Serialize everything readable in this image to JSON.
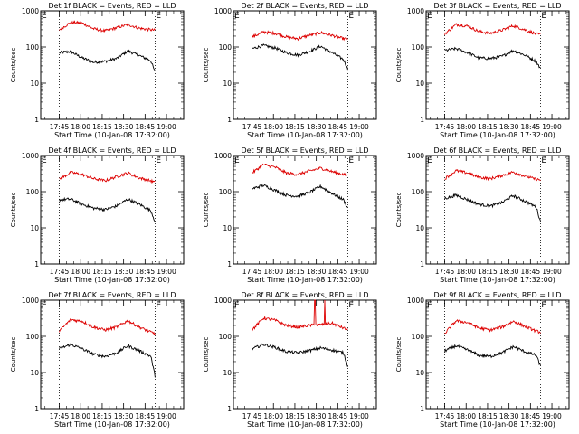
{
  "figure": {
    "xlabel": "Start Time (10-Jan-08 17:32:00)",
    "ylabel": "Counts/sec",
    "marker": "E"
  },
  "colors": {
    "events": "#000000",
    "lld": "#dd0000"
  },
  "chart_data": [
    {
      "type": "line",
      "title": "Det 1f BLACK = Events, RED = LLD",
      "y_scale": "log",
      "ylim": [
        1,
        1000
      ],
      "x_ticks": [
        "17:45",
        "18:00",
        "18:15",
        "18:30",
        "18:45",
        "19:00"
      ],
      "y_ticks": [
        "1",
        "10",
        "100",
        "1000"
      ],
      "grid": false,
      "start_marker": "17:32",
      "end_marker": "18:52",
      "dotted_lines": [
        "17:45",
        "18:52"
      ],
      "x": [
        "17:45",
        "17:53",
        "18:01",
        "18:09",
        "18:17",
        "18:25",
        "18:33",
        "18:41",
        "18:49",
        "18:52"
      ],
      "series": [
        {
          "color": "black",
          "values": [
            70,
            75,
            50,
            38,
            40,
            48,
            78,
            58,
            42,
            20
          ]
        },
        {
          "color": "red",
          "values": [
            300,
            480,
            460,
            320,
            280,
            340,
            420,
            330,
            300,
            290
          ]
        }
      ]
    },
    {
      "type": "line",
      "title": "Det 2f BLACK = Events, RED = LLD",
      "y_scale": "log",
      "ylim": [
        1,
        1000
      ],
      "x_ticks": [
        "17:45",
        "18:00",
        "18:15",
        "18:30",
        "18:45",
        "19:00"
      ],
      "y_ticks": [
        "1",
        "10",
        "100",
        "1000"
      ],
      "grid": false,
      "start_marker": "17:32",
      "end_marker": "18:52",
      "dotted_lines": [
        "17:45",
        "18:52"
      ],
      "x": [
        "17:45",
        "17:53",
        "18:01",
        "18:09",
        "18:17",
        "18:25",
        "18:33",
        "18:41",
        "18:49",
        "18:52"
      ],
      "series": [
        {
          "color": "black",
          "values": [
            90,
            110,
            95,
            70,
            60,
            75,
            105,
            70,
            45,
            25
          ]
        },
        {
          "color": "red",
          "values": [
            190,
            260,
            240,
            190,
            170,
            210,
            250,
            210,
            170,
            170
          ]
        }
      ]
    },
    {
      "type": "line",
      "title": "Det 3f BLACK = Events, RED = LLD",
      "y_scale": "log",
      "ylim": [
        1,
        1000
      ],
      "x_ticks": [
        "17:45",
        "18:00",
        "18:15",
        "18:30",
        "18:45",
        "19:00"
      ],
      "y_ticks": [
        "1",
        "10",
        "100",
        "1000"
      ],
      "grid": false,
      "start_marker": "17:32",
      "end_marker": "18:52",
      "dotted_lines": [
        "17:45",
        "18:52"
      ],
      "x": [
        "17:45",
        "17:53",
        "18:01",
        "18:09",
        "18:17",
        "18:25",
        "18:33",
        "18:41",
        "18:49",
        "18:52"
      ],
      "series": [
        {
          "color": "black",
          "values": [
            80,
            90,
            70,
            50,
            48,
            55,
            80,
            60,
            40,
            25
          ]
        },
        {
          "color": "red",
          "values": [
            230,
            420,
            380,
            270,
            240,
            290,
            390,
            300,
            230,
            220
          ]
        }
      ]
    },
    {
      "type": "line",
      "title": "Det 4f BLACK = Events, RED = LLD",
      "y_scale": "log",
      "ylim": [
        1,
        1000
      ],
      "x_ticks": [
        "17:45",
        "18:00",
        "18:15",
        "18:30",
        "18:45",
        "19:00"
      ],
      "y_ticks": [
        "1",
        "10",
        "100",
        "1000"
      ],
      "grid": false,
      "start_marker": "17:32",
      "end_marker": "18:52",
      "dotted_lines": [
        "17:45",
        "18:52"
      ],
      "x": [
        "17:45",
        "17:53",
        "18:01",
        "18:09",
        "18:17",
        "18:25",
        "18:33",
        "18:41",
        "18:49",
        "18:52"
      ],
      "series": [
        {
          "color": "black",
          "values": [
            60,
            62,
            45,
            35,
            32,
            40,
            62,
            45,
            30,
            15
          ]
        },
        {
          "color": "red",
          "values": [
            220,
            340,
            300,
            230,
            200,
            260,
            330,
            240,
            200,
            180
          ]
        }
      ]
    },
    {
      "type": "line",
      "title": "Det 5f BLACK = Events, RED = LLD",
      "y_scale": "log",
      "ylim": [
        1,
        1000
      ],
      "x_ticks": [
        "17:45",
        "18:00",
        "18:15",
        "18:30",
        "18:45",
        "19:00"
      ],
      "y_ticks": [
        "1",
        "10",
        "100",
        "1000"
      ],
      "grid": false,
      "start_marker": "17:32",
      "end_marker": "18:52",
      "dotted_lines": [
        "17:45",
        "18:52"
      ],
      "x": [
        "17:45",
        "17:53",
        "18:01",
        "18:09",
        "18:17",
        "18:25",
        "18:33",
        "18:41",
        "18:49",
        "18:52"
      ],
      "series": [
        {
          "color": "black",
          "values": [
            120,
            150,
            110,
            80,
            75,
            95,
            140,
            90,
            60,
            35
          ]
        },
        {
          "color": "red",
          "values": [
            330,
            560,
            480,
            330,
            300,
            370,
            450,
            360,
            300,
            290
          ]
        }
      ]
    },
    {
      "type": "line",
      "title": "Det 6f BLACK = Events, RED = LLD",
      "y_scale": "log",
      "ylim": [
        1,
        1000
      ],
      "x_ticks": [
        "17:45",
        "18:00",
        "18:15",
        "18:30",
        "18:45",
        "19:00"
      ],
      "y_ticks": [
        "1",
        "10",
        "100",
        "1000"
      ],
      "grid": false,
      "start_marker": "17:32",
      "end_marker": "18:52",
      "dotted_lines": [
        "17:45",
        "18:52"
      ],
      "x": [
        "17:45",
        "17:53",
        "18:01",
        "18:09",
        "18:17",
        "18:25",
        "18:33",
        "18:41",
        "18:49",
        "18:52"
      ],
      "series": [
        {
          "color": "black",
          "values": [
            65,
            80,
            60,
            45,
            40,
            50,
            78,
            55,
            38,
            15
          ]
        },
        {
          "color": "red",
          "values": [
            230,
            380,
            330,
            250,
            230,
            280,
            350,
            270,
            220,
            210
          ]
        }
      ]
    },
    {
      "type": "line",
      "title": "Det 7f BLACK = Events, RED = LLD",
      "y_scale": "log",
      "ylim": [
        1,
        1000
      ],
      "x_ticks": [
        "17:45",
        "18:00",
        "18:15",
        "18:30",
        "18:45",
        "19:00"
      ],
      "y_ticks": [
        "1",
        "10",
        "100",
        "1000"
      ],
      "grid": false,
      "start_marker": "17:32",
      "end_marker": "18:52",
      "dotted_lines": [
        "17:45",
        "18:52"
      ],
      "x": [
        "17:45",
        "17:53",
        "18:01",
        "18:09",
        "18:17",
        "18:25",
        "18:33",
        "18:41",
        "18:49",
        "18:52"
      ],
      "series": [
        {
          "color": "black",
          "values": [
            45,
            60,
            45,
            32,
            28,
            35,
            55,
            40,
            28,
            8
          ]
        },
        {
          "color": "red",
          "values": [
            140,
            290,
            260,
            180,
            150,
            180,
            270,
            180,
            130,
            120
          ]
        }
      ]
    },
    {
      "type": "line",
      "title": "Det 8f BLACK = Events, RED = LLD",
      "y_scale": "log",
      "ylim": [
        1,
        1000
      ],
      "x_ticks": [
        "17:45",
        "18:00",
        "18:15",
        "18:30",
        "18:45",
        "19:00"
      ],
      "y_ticks": [
        "1",
        "10",
        "100",
        "1000"
      ],
      "grid": false,
      "start_marker": "17:32",
      "end_marker": "18:52",
      "dotted_lines": [
        "17:45",
        "18:52"
      ],
      "x": [
        "17:45",
        "17:53",
        "18:01",
        "18:09",
        "18:17",
        "18:25",
        "18:33",
        "18:41",
        "18:49",
        "18:52"
      ],
      "spike_x": [
        "18:29",
        "18:36"
      ],
      "spike_value": 1000,
      "series": [
        {
          "color": "black",
          "values": [
            45,
            60,
            50,
            38,
            35,
            40,
            48,
            42,
            35,
            15
          ]
        },
        {
          "color": "red",
          "values": [
            150,
            320,
            280,
            200,
            180,
            200,
            210,
            230,
            170,
            150
          ]
        }
      ]
    },
    {
      "type": "line",
      "title": "Det 9f BLACK = Events, RED = LLD",
      "y_scale": "log",
      "ylim": [
        1,
        1000
      ],
      "x_ticks": [
        "17:45",
        "18:00",
        "18:15",
        "18:30",
        "18:45",
        "19:00"
      ],
      "y_ticks": [
        "1",
        "10",
        "100",
        "1000"
      ],
      "grid": false,
      "start_marker": "17:32",
      "end_marker": "18:52",
      "dotted_lines": [
        "17:45",
        "18:52"
      ],
      "x": [
        "17:45",
        "17:53",
        "18:01",
        "18:09",
        "18:17",
        "18:25",
        "18:33",
        "18:41",
        "18:49",
        "18:52"
      ],
      "series": [
        {
          "color": "black",
          "values": [
            40,
            55,
            42,
            30,
            28,
            35,
            52,
            38,
            30,
            15
          ]
        },
        {
          "color": "red",
          "values": [
            120,
            270,
            240,
            170,
            150,
            180,
            260,
            190,
            140,
            130
          ]
        }
      ]
    }
  ]
}
